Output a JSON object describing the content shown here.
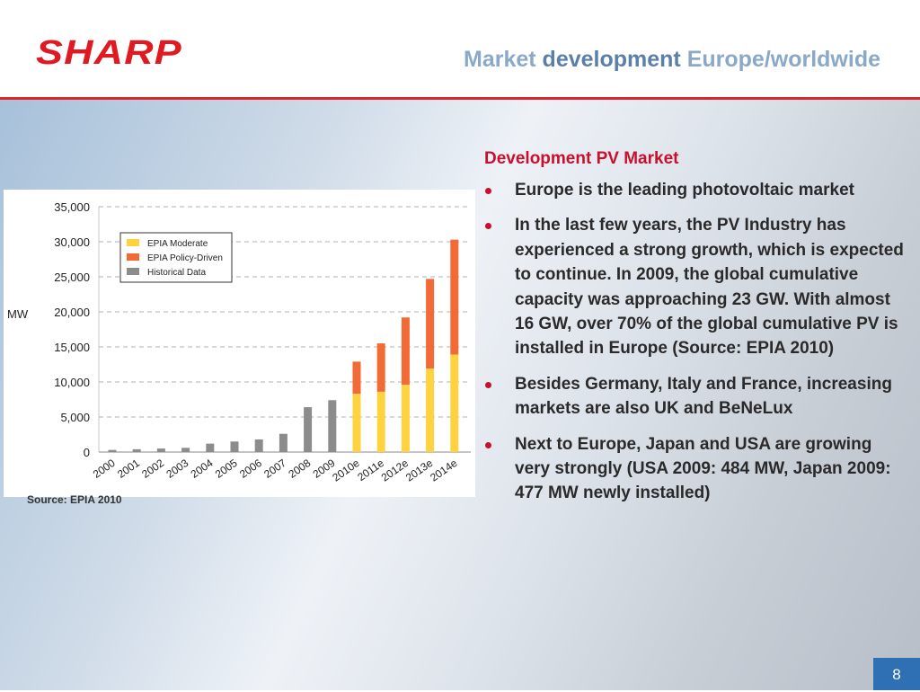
{
  "header": {
    "logo_text": "SHARP",
    "title_part1": "Market",
    "title_part2": "development",
    "title_part3": "Europe/worldwide"
  },
  "chart": {
    "source": "Source: EPIA 2010"
  },
  "text_panel": {
    "heading": "Development PV Market",
    "bullets": [
      "Europe is the leading photovoltaic market",
      "In the last few years, the PV Industry has experienced a strong growth, which is expected to continue. In 2009, the global cumulative capacity was approaching 23 GW. With almost 16 GW, over 70% of the global cumulative PV is installed in Europe (Source: EPIA 2010)",
      "Besides Germany, Italy and France, increasing markets are also UK and BeNeLux",
      "Next to Europe, Japan and USA are growing very strongly (USA 2009: 484 MW, Japan 2009: 477 MW newly installed)"
    ]
  },
  "footer": {
    "page_number": "8"
  },
  "colors": {
    "brand_red": "#e01a22",
    "moderate": "#ffd23f",
    "policy": "#f26a36",
    "historical": "#8c8c8c"
  },
  "chart_data": {
    "type": "bar",
    "ylabel": "MW",
    "ylim": [
      0,
      35000
    ],
    "yticks": [
      "0",
      "5,000",
      "10,000",
      "15,000",
      "20,000",
      "25,000",
      "30,000",
      "35,000"
    ],
    "ytick_values": [
      0,
      5000,
      10000,
      15000,
      20000,
      25000,
      30000,
      35000
    ],
    "categories": [
      "2000",
      "2001",
      "2002",
      "2003",
      "2004",
      "2005",
      "2006",
      "2007",
      "2008",
      "2009",
      "2010e",
      "2011e",
      "2012e",
      "2013e",
      "2014e"
    ],
    "grid": true,
    "legend_position": "top-left",
    "series": [
      {
        "name": "EPIA Moderate",
        "color": "#ffd23f",
        "values": [
          null,
          null,
          null,
          null,
          null,
          null,
          null,
          null,
          null,
          null,
          8300,
          8600,
          9600,
          11900,
          13900
        ]
      },
      {
        "name": "EPIA Policy-Driven",
        "color": "#f26a36",
        "values": [
          null,
          null,
          null,
          null,
          null,
          null,
          null,
          null,
          null,
          null,
          12900,
          15500,
          19200,
          24700,
          30300
        ]
      },
      {
        "name": "Historical Data",
        "color": "#8c8c8c",
        "values": [
          300,
          400,
          500,
          600,
          1200,
          1500,
          1800,
          2600,
          6400,
          7400,
          null,
          null,
          null,
          null,
          null
        ]
      }
    ]
  }
}
